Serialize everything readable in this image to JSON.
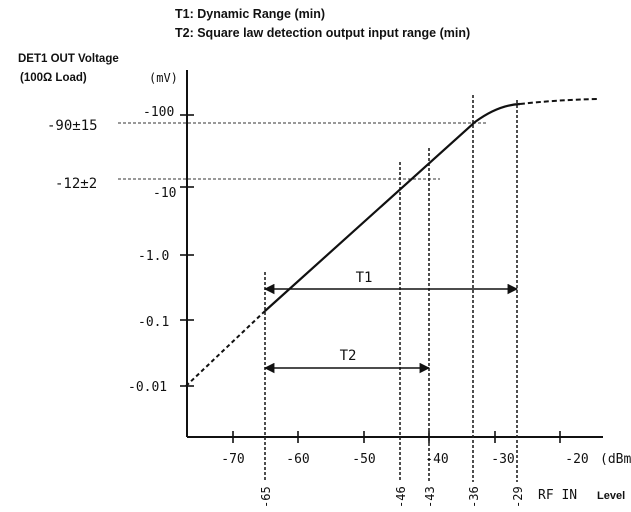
{
  "notes": {
    "t1": "T1: Dynamic Range (min)",
    "t2": "T2: Square law detection output input range (min)"
  },
  "y_axis": {
    "label_line1": "DET1 OUT Voltage",
    "label_line2": "(100Ω Load)",
    "unit": "(mV)",
    "tick_labels": [
      "-100",
      "-10",
      "-1.0",
      "-0.1",
      "-0.01"
    ],
    "reference_labels": [
      "-90±15",
      "-12±2"
    ]
  },
  "x_axis": {
    "tick_labels": [
      "-70",
      "-60",
      "-50",
      "-40",
      "-30",
      "-20",
      "(dBm)"
    ],
    "marker_labels": [
      "-65",
      "-46",
      "-43",
      "-36",
      "-29"
    ],
    "label": "RF IN",
    "label_suffix": "Level"
  },
  "ranges": {
    "t1_label": "T1",
    "t2_label": "T2"
  },
  "chart_data": {
    "type": "line",
    "xlabel": "RF IN Level",
    "ylabel": "DET1 OUT Voltage (100Ω Load)",
    "x_unit": "dBm",
    "y_unit": "mV",
    "y_scale": "log",
    "xlim": [
      -77,
      -17
    ],
    "ylim": [
      -0.004,
      -300
    ],
    "series": [
      {
        "points_solid": [
          [
            -65,
            -0.15
          ],
          [
            -35,
            -100
          ],
          [
            -29,
            -150
          ]
        ],
        "points_dashed_low": [
          [
            -77,
            -0.01
          ],
          [
            -65,
            -0.15
          ]
        ],
        "points_dashed_high": [
          [
            -29,
            -150
          ],
          [
            -26,
            -170
          ],
          [
            -17,
            -200
          ]
        ]
      }
    ],
    "reference_levels": [
      {
        "label": "-90±15",
        "value": -90,
        "x_end": -35
      },
      {
        "label": "-12±2",
        "value": -12,
        "x_end": -43
      }
    ],
    "markers": [
      -65,
      -46,
      -43,
      -36,
      -29
    ],
    "ranges": [
      {
        "label": "T1",
        "from": -65,
        "to": -29
      },
      {
        "label": "T2",
        "from": -65,
        "to": -43
      }
    ],
    "grid": false
  }
}
